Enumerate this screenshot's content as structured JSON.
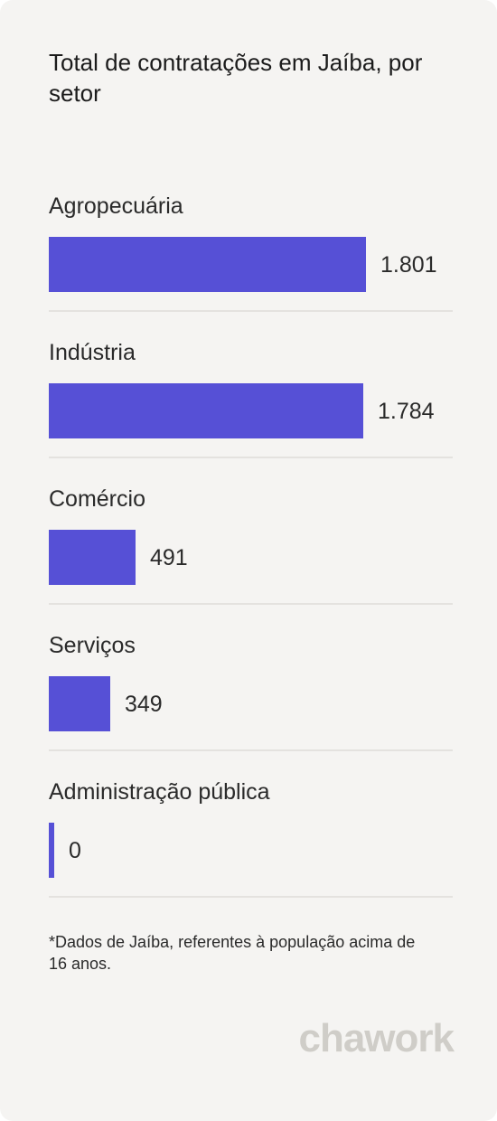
{
  "title": "Total de contratações em Jaíba, por setor",
  "chart_data": {
    "type": "bar",
    "orientation": "horizontal",
    "categories": [
      "Agropecuária",
      "Indústria",
      "Comércio",
      "Serviços",
      "Administração pública"
    ],
    "values": [
      1801,
      1784,
      491,
      349,
      0
    ],
    "value_labels": [
      "1.801",
      "1.784",
      "491",
      "349",
      "0"
    ],
    "bar_color": "#5650d6"
  },
  "footnote": "*Dados de Jaíba, referentes à população acima de 16 anos.",
  "logo_text": "chawork"
}
